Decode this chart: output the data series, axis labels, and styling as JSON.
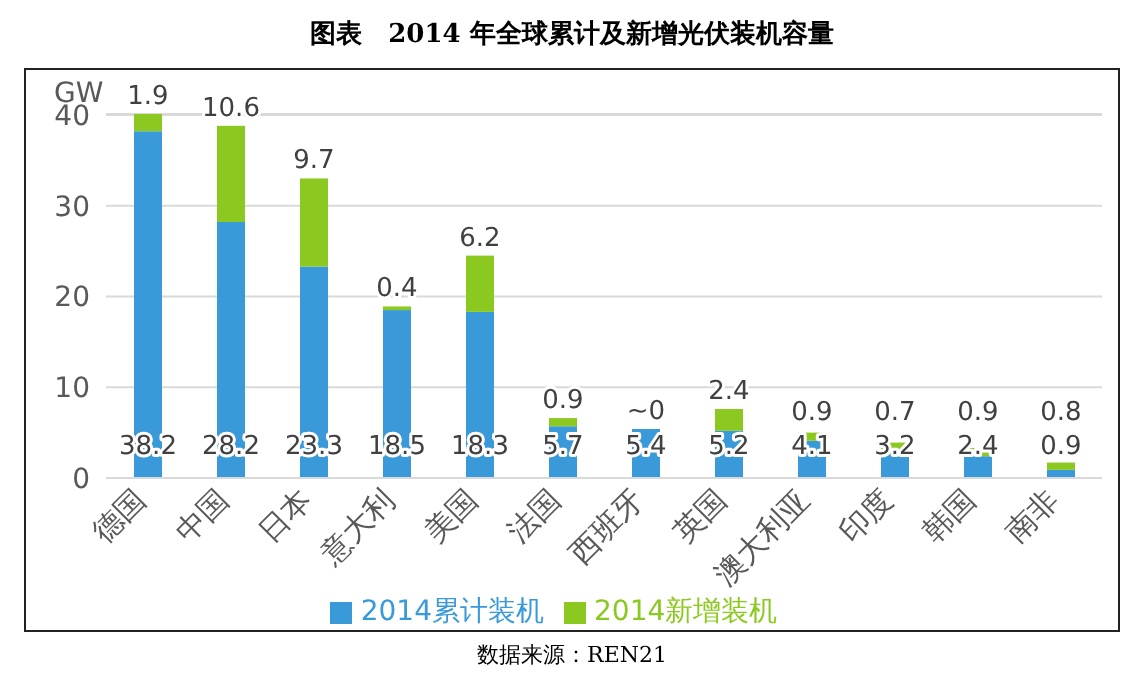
{
  "chart_data": {
    "type": "bar",
    "title": "图表　2014 年全球累计及新增光伏装机容量",
    "ylabel": "GW",
    "categories": [
      "德国",
      "中国",
      "日本",
      "意大利",
      "美国",
      "法国",
      "西班牙",
      "英国",
      "澳大利亚",
      "印度",
      "韩国",
      "南非"
    ],
    "series": [
      {
        "name": "2014累计装机",
        "color": "#3a9ad9",
        "values": [
          38.2,
          28.2,
          23.3,
          18.5,
          18.3,
          5.7,
          5.4,
          5.2,
          4.1,
          3.2,
          2.4,
          0.9
        ],
        "value_labels": [
          "38.2",
          "28.2",
          "23.3",
          "18.5",
          "18.3",
          "5.7",
          "5.4",
          "5.2",
          "4.1",
          "3.2",
          "2.4",
          "0.9"
        ]
      },
      {
        "name": "2014新增装机",
        "color": "#8cc920",
        "values": [
          1.9,
          10.6,
          9.7,
          0.4,
          6.2,
          0.9,
          0,
          2.4,
          0.9,
          0.7,
          0.9,
          0.8
        ],
        "value_labels": [
          "1.9",
          "10.6",
          "9.7",
          "0.4",
          "6.2",
          "0.9",
          "~0",
          "2.4",
          "0.9",
          "0.7",
          "0.9",
          "0.8"
        ]
      }
    ],
    "stacked": true,
    "ylim": [
      0,
      40
    ],
    "yticks": [
      0,
      10,
      20,
      30,
      40
    ],
    "grid": "y",
    "legend": "bottom",
    "annotations": [
      "数据来源：REN21"
    ]
  }
}
